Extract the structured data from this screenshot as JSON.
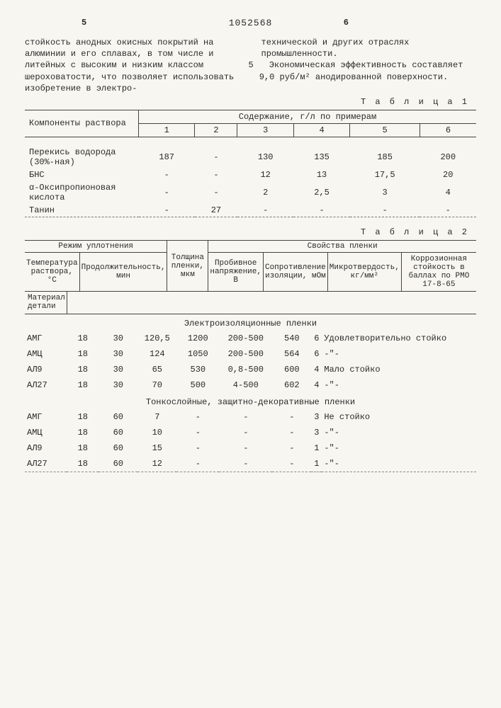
{
  "header": {
    "left_num": "5",
    "doc_num": "1052568",
    "right_num": "6"
  },
  "paragraphs": {
    "left": "стойкость анодных окисных покрытий на алюминии и его сплавах, в том числе и литейных с высоким и низким классом шероховатости, что позволяет использовать изобретение в электро-",
    "right_1": "технической и других отраслях промышленности.",
    "right_2": "Экономическая эффективность составляет 9,0 руб/м² анодированной поверхности.",
    "margin_num": "5"
  },
  "table1": {
    "label": "Т а б л и ц а 1",
    "head_components": "Компоненты раствора",
    "head_content": "Содержание, г/л по примерам",
    "cols": [
      "1",
      "2",
      "3",
      "4",
      "5",
      "6"
    ],
    "rows": [
      {
        "name": "Перекись водорода (30%-ная)",
        "v": [
          "187",
          "-",
          "130",
          "135",
          "185",
          "200"
        ]
      },
      {
        "name": "БНС",
        "v": [
          "-",
          "-",
          "12",
          "13",
          "17,5",
          "20"
        ]
      },
      {
        "name": "α-Оксипропионовая кислота",
        "v": [
          "-",
          "-",
          "2",
          "2,5",
          "3",
          "4"
        ]
      },
      {
        "name": "Танин",
        "v": [
          "-",
          "27",
          "-",
          "-",
          "-",
          "-"
        ]
      }
    ]
  },
  "table2": {
    "label": "Т а б л и ц а 2",
    "headers": {
      "regime": "Режим уплотнения",
      "props": "Свойства пленки",
      "material": "Материал детали",
      "temp": "Температура раствора, °С",
      "duration": "Продолжительность, мин",
      "thickness": "Толщина пленки, мкм",
      "breakdown": "Пробивное напряжение, В",
      "resistance": "Сопротивление изоляции, мОм",
      "hardness": "Микротвердость, кг/мм²",
      "corrosion": "Коррозионная стойкость в баллах по РМО 17-8-65"
    },
    "section1": "Электроизоляционные пленки",
    "rows1": [
      {
        "m": "АМГ",
        "t": "18",
        "d": "30",
        "th": "120,5",
        "bv": "1200",
        "r": "200-500",
        "h": "540",
        "c": "6",
        "note": "Удовлетворительно стойко"
      },
      {
        "m": "АМЦ",
        "t": "18",
        "d": "30",
        "th": "124",
        "bv": "1050",
        "r": "200-500",
        "h": "564",
        "c": "6",
        "note": "-\"-"
      },
      {
        "m": "АЛ9",
        "t": "18",
        "d": "30",
        "th": "65",
        "bv": "530",
        "r": "0,8-500",
        "h": "600",
        "c": "4",
        "note": "Мало стойко"
      },
      {
        "m": "АЛ27",
        "t": "18",
        "d": "30",
        "th": "70",
        "bv": "500",
        "r": "4-500",
        "h": "602",
        "c": "4",
        "note": "-\"-"
      }
    ],
    "section2": "Тонкослойные, защитно-декоративные пленки",
    "rows2": [
      {
        "m": "АМГ",
        "t": "18",
        "d": "60",
        "th": "7",
        "bv": "-",
        "r": "-",
        "h": "-",
        "c": "3",
        "note": "Не стойко"
      },
      {
        "m": "АМЦ",
        "t": "18",
        "d": "60",
        "th": "10",
        "bv": "-",
        "r": "-",
        "h": "-",
        "c": "3",
        "note": "-\"-"
      },
      {
        "m": "АЛ9",
        "t": "18",
        "d": "60",
        "th": "15",
        "bv": "-",
        "r": "-",
        "h": "-",
        "c": "1",
        "note": "-\"-"
      },
      {
        "m": "АЛ27",
        "t": "18",
        "d": "60",
        "th": "12",
        "bv": "-",
        "r": "-",
        "h": "-",
        "c": "1",
        "note": "-\"-"
      }
    ]
  }
}
